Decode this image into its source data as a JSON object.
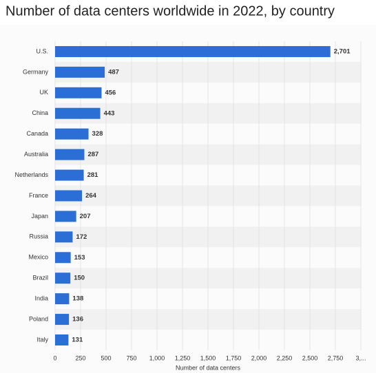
{
  "chart_data": {
    "type": "bar",
    "orientation": "horizontal",
    "title": "Number of data centers worldwide in 2022, by country",
    "categories": [
      "U.S.",
      "Germany",
      "UK",
      "China",
      "Canada",
      "Australia",
      "Netherlands",
      "France",
      "Japan",
      "Russia",
      "Mexico",
      "Brazil",
      "India",
      "Poland",
      "Italy"
    ],
    "values": [
      2701,
      487,
      456,
      443,
      328,
      287,
      281,
      264,
      207,
      172,
      153,
      150,
      138,
      136,
      131
    ],
    "value_labels": [
      "2,701",
      "487",
      "456",
      "443",
      "328",
      "287",
      "281",
      "264",
      "207",
      "172",
      "153",
      "150",
      "138",
      "136",
      "131"
    ],
    "color": "#2b6fd6",
    "xlabel": "Number of data centers",
    "xlim": [
      0,
      3000
    ],
    "xticks": [
      0,
      250,
      500,
      750,
      {
        "value": 1000,
        "label": "1,000"
      },
      {
        "value": 1250,
        "label": "1,250"
      },
      {
        "value": 1500,
        "label": "1,500"
      },
      {
        "value": 1750,
        "label": "1,750"
      },
      {
        "value": 2000,
        "label": "2,000"
      },
      {
        "value": 2250,
        "label": "2,250"
      },
      {
        "value": 2500,
        "label": "2,500"
      },
      {
        "value": 2750,
        "label": "2,750"
      },
      {
        "value": 3000,
        "label": "3,..."
      }
    ],
    "grid": true
  }
}
